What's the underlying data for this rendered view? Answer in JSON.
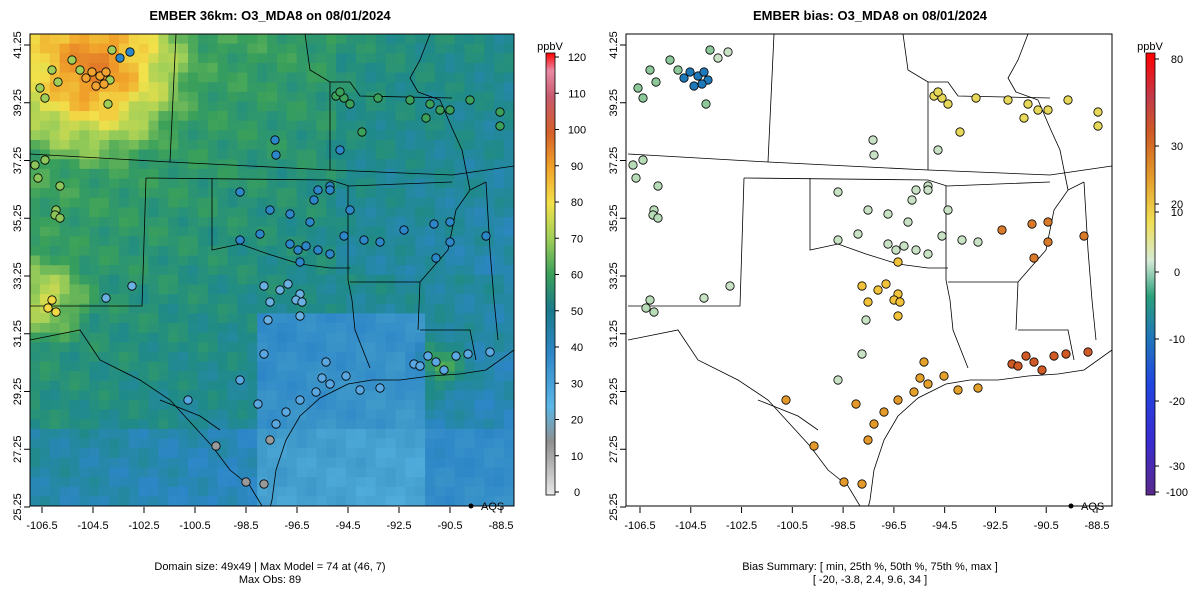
{
  "panels": [
    {
      "title": "EMBER 36km: O3_MDA8 on 08/01/2024",
      "xticks": [
        "-106.5",
        "-104.5",
        "-102.5",
        "-100.5",
        "-98.5",
        "-96.5",
        "-94.5",
        "-92.5",
        "-90.5",
        "-88.5"
      ],
      "yticks": [
        "25.25",
        "27.25",
        "29.25",
        "31.25",
        "33.25",
        "35.25",
        "37.25",
        "39.25",
        "41.25"
      ],
      "legend_label": "AQS",
      "footer_line1": "Domain size: 49x49 | Max Model = 74 at (46, 7)",
      "footer_line2": "Max Obs: 89",
      "colorbar": {
        "unit": "ppbV",
        "ticks": [
          "120",
          "110",
          "100",
          "90",
          "80",
          "70",
          "60",
          "50",
          "40",
          "30",
          "20",
          "10",
          "0"
        ],
        "range": [
          0,
          122
        ]
      }
    },
    {
      "title": "EMBER bias: O3_MDA8 on 08/01/2024",
      "xticks": [
        "-106.5",
        "-104.5",
        "-102.5",
        "-100.5",
        "-98.5",
        "-96.5",
        "-94.5",
        "-92.5",
        "-90.5",
        "-88.5"
      ],
      "yticks": [
        "25.25",
        "27.25",
        "29.25",
        "31.25",
        "33.25",
        "35.25",
        "37.25",
        "39.25",
        "41.25"
      ],
      "legend_label": "AQS",
      "footer_line1": "Bias Summary: [ min, 25th %, 50th %, 75th %, max ]",
      "footer_line2": "[ -20,   -3.8,   2.4,   9.6,   34 ]",
      "colorbar": {
        "unit": "ppbV",
        "ticks": [
          "80",
          "30",
          "20",
          "10",
          "0",
          "-10",
          "-20",
          "-30",
          "-100"
        ]
      }
    }
  ],
  "colors": {
    "model_base": "#3f99c9",
    "model_high": "#f2b32a",
    "bias_zero": "#dcebd8",
    "outline": "#000000"
  }
}
